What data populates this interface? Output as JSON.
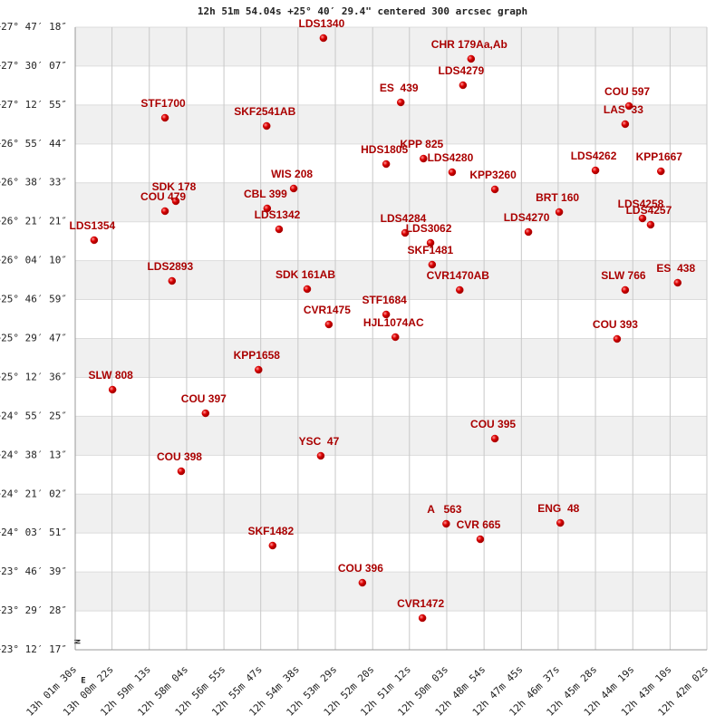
{
  "chart_data": {
    "type": "scatter",
    "title": "12h 51m 54.04s +25° 40′ 29.4\" centered 300 arcsec graph",
    "compass": {
      "north": "N",
      "east": "E"
    },
    "xlim": [
      3690,
      2522
    ],
    "ylim": [
      83537,
      100038
    ],
    "xticks": [
      {
        "value": 3690,
        "label": "13h 01m 30s"
      },
      {
        "value": 3622,
        "label": "13h 00m 22s"
      },
      {
        "value": 3553,
        "label": "12h 59m 13s"
      },
      {
        "value": 3484,
        "label": "12h 58m 04s"
      },
      {
        "value": 3415,
        "label": "12h 56m 55s"
      },
      {
        "value": 3347,
        "label": "12h 55m 47s"
      },
      {
        "value": 3278,
        "label": "12h 54m 38s"
      },
      {
        "value": 3209,
        "label": "12h 53m 29s"
      },
      {
        "value": 3140,
        "label": "12h 52m 20s"
      },
      {
        "value": 3072,
        "label": "12h 51m 12s"
      },
      {
        "value": 3003,
        "label": "12h 50m 03s"
      },
      {
        "value": 2934,
        "label": "12h 48m 54s"
      },
      {
        "value": 2865,
        "label": "12h 47m 45s"
      },
      {
        "value": 2797,
        "label": "12h 46m 37s"
      },
      {
        "value": 2728,
        "label": "12h 45m 28s"
      },
      {
        "value": 2659,
        "label": "12h 44m 19s"
      },
      {
        "value": 2590,
        "label": "12h 43m 10s"
      },
      {
        "value": 2522,
        "label": "12h 42m 02s"
      }
    ],
    "yticks": [
      {
        "value": 83537,
        "label": "+23° 12′ 17″"
      },
      {
        "value": 84568,
        "label": "+23° 29′ 28″"
      },
      {
        "value": 85599,
        "label": "+23° 46′ 39″"
      },
      {
        "value": 86631,
        "label": "+24° 03′ 51″"
      },
      {
        "value": 87662,
        "label": "+24° 21′ 02″"
      },
      {
        "value": 88693,
        "label": "+24° 38′ 13″"
      },
      {
        "value": 89725,
        "label": "+24° 55′ 25″"
      },
      {
        "value": 90756,
        "label": "+25° 12′ 36″"
      },
      {
        "value": 91787,
        "label": "+25° 29′ 47″"
      },
      {
        "value": 92819,
        "label": "+25° 46′ 59″"
      },
      {
        "value": 93850,
        "label": "+26° 04′ 10″"
      },
      {
        "value": 94881,
        "label": "+26° 21′ 21″"
      },
      {
        "value": 95913,
        "label": "+26° 38′ 33″"
      },
      {
        "value": 96944,
        "label": "+26° 55′ 44″"
      },
      {
        "value": 97975,
        "label": "+27° 12′ 55″"
      },
      {
        "value": 99007,
        "label": "+27° 30′ 07″"
      },
      {
        "value": 100038,
        "label": "+27° 47′ 18″"
      }
    ],
    "grid": true,
    "x": [
      3231,
      2958,
      2973,
      3088,
      2666,
      2673,
      3524,
      3336,
      3115,
      3046,
      2993,
      2728,
      2607,
      2914,
      3286,
      3504,
      3524,
      3335,
      2795,
      3313,
      2641,
      2626,
      3080,
      2852,
      3033,
      3655,
      3030,
      3511,
      3261,
      2979,
      2673,
      2576,
      3115,
      3221,
      3098,
      2688,
      3351,
      3621,
      3449,
      2914,
      3236,
      3494,
      3004,
      2793,
      2941,
      3325,
      3159,
      3048
    ],
    "series": [
      {
        "color": "#cc0000",
        "values": [
          99750,
          99198,
          98501,
          98045,
          97949,
          97469,
          97636,
          97420,
          96411,
          96555,
          96195,
          96243,
          96219,
          95739,
          95763,
          95427,
          95163,
          95235,
          95139,
          94682,
          94970,
          94802,
          94586,
          94610,
          94322,
          94394,
          93745,
          93313,
          93097,
          93073,
          93073,
          93265,
          92424,
          92160,
          91824,
          91776,
          90959,
          90431,
          89806,
          89134,
          88677,
          88269,
          86876,
          86900,
          86467,
          86299,
          85314,
          84378
        ],
        "value_labels": [
          "LDS1340",
          "CHR 179Aa,Ab",
          "LDS4279",
          "ES  439",
          "COU 597",
          "LAS  33",
          "STF1700",
          "SKF2541AB",
          "HDS1805",
          "KPP 825",
          "LDS4280",
          "LDS4262",
          "KPP1667",
          "KPP3260",
          "WIS 208",
          "SDK 178",
          "COU 479",
          "CBL 399",
          "BRT 160",
          "LDS1342",
          "LDS4258",
          "LDS4257",
          "LDS4284",
          "LDS4270",
          "LDS3062",
          "LDS1354",
          "SKF1481",
          "LDS2893",
          "SDK 161AB",
          "CVR1470AB",
          "SLW 766",
          "ES  438",
          "STF1684",
          "CVR1475",
          "HJL1074AC",
          "COU 393",
          "KPP1658",
          "SLW 808",
          "COU 397",
          "COU 395",
          "YSC  47",
          "COU 398",
          "A   563",
          "ENG  48",
          "CVR 665",
          "SKF1482",
          "COU 396",
          "CVR1472"
        ]
      }
    ]
  }
}
